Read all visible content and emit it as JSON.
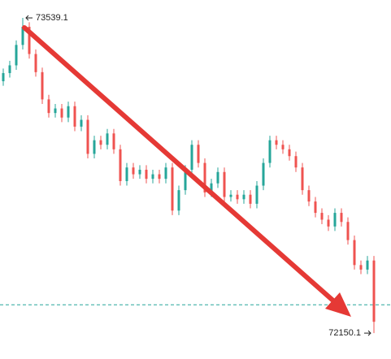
{
  "chart_data": {
    "type": "candlestick",
    "open": [
      73260,
      73296,
      73330,
      73420,
      73500,
      73380,
      73300,
      73180,
      73120,
      73140,
      73100,
      73150,
      73060,
      73090,
      72940,
      73000,
      72980,
      73030,
      72960,
      72820,
      72880,
      72850,
      72870,
      72830,
      72850,
      72830,
      72880,
      72690,
      72780,
      72870,
      72980,
      72900,
      72770,
      72810,
      72860,
      72750,
      72760,
      72740,
      72760,
      72720,
      72800,
      72900,
      73000,
      72980,
      72960,
      72930,
      72880,
      72780,
      72730,
      72680,
      72650,
      72620,
      72680,
      72640,
      72560,
      72450,
      72430,
      72470
    ],
    "high": [
      73316,
      73350,
      73440,
      73539.1,
      73520,
      73400,
      73320,
      73200,
      73160,
      73160,
      73170,
      73170,
      73110,
      73110,
      73020,
      73020,
      73050,
      73050,
      72980,
      72900,
      72900,
      72890,
      72890,
      72870,
      72870,
      72900,
      72900,
      72800,
      72890,
      73000,
      73000,
      72920,
      72830,
      72880,
      72880,
      72780,
      72780,
      72780,
      72780,
      72820,
      72920,
      73020,
      73020,
      73000,
      72980,
      72950,
      72900,
      72800,
      72750,
      72700,
      72670,
      72700,
      72700,
      72660,
      72580,
      72470,
      72490,
      72490
    ],
    "low": [
      73240,
      73276,
      73310,
      73400,
      73360,
      73280,
      73160,
      73100,
      73100,
      73080,
      73080,
      73040,
      73040,
      72920,
      72920,
      72960,
      72960,
      72940,
      72800,
      72800,
      72830,
      72830,
      72810,
      72810,
      72810,
      72810,
      72670,
      72670,
      72760,
      72850,
      72880,
      72750,
      72750,
      72790,
      72730,
      72730,
      72720,
      72720,
      72700,
      72700,
      72780,
      72880,
      72960,
      72940,
      72910,
      72860,
      72760,
      72710,
      72660,
      72630,
      72600,
      72600,
      72620,
      72540,
      72430,
      72410,
      72410,
      72150.1
    ],
    "close": [
      73296,
      73330,
      73420,
      73500,
      73380,
      73300,
      73180,
      73120,
      73140,
      73100,
      73150,
      73060,
      73090,
      72940,
      73000,
      72980,
      73030,
      72960,
      72820,
      72880,
      72850,
      72870,
      72830,
      72850,
      72830,
      72880,
      72690,
      72780,
      72870,
      72980,
      72900,
      72770,
      72810,
      72860,
      72750,
      72760,
      72740,
      72760,
      72720,
      72800,
      72900,
      73000,
      72980,
      72960,
      72930,
      72880,
      72780,
      72730,
      72680,
      72650,
      72620,
      72680,
      72640,
      72560,
      72450,
      72430,
      72470,
      72200
    ],
    "up_color": "#26a69a",
    "down_color": "#ef5350",
    "reference_line": 72275,
    "reference_color": "#26a69a",
    "ylim": [
      72036,
      73618
    ]
  }
}
